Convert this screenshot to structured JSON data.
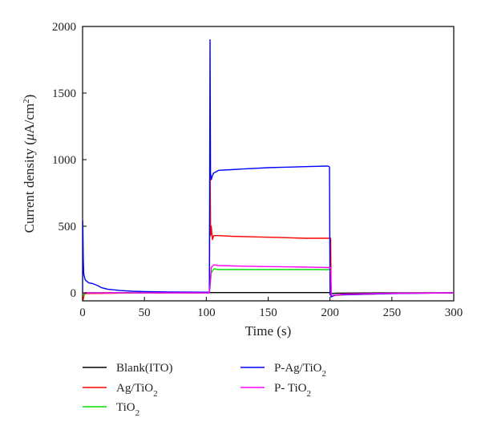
{
  "chart_data": {
    "type": "line",
    "title": "",
    "xlabel": "Time (s)",
    "ylabel_main": "Current density (",
    "ylabel_mu": "μ",
    "ylabel_unit": "A/cm",
    "ylabel_sup": "2",
    "ylabel_close": ")",
    "xlim": [
      0,
      300
    ],
    "ylim": [
      -60,
      2000
    ],
    "xticks": [
      0,
      50,
      100,
      150,
      200,
      250,
      300
    ],
    "yticks": [
      0,
      500,
      1000,
      1500,
      2000
    ],
    "grid": false,
    "legend_position": "bottom",
    "series": [
      {
        "name": "Blank(ITO)",
        "name_base": "Blank(ITO)",
        "name_sub": "",
        "color": "#000000",
        "x": [
          0,
          0.5,
          1.5,
          3,
          50,
          100,
          102,
          103,
          110,
          150,
          199,
          200,
          201,
          205,
          250,
          300
        ],
        "y": [
          0,
          -40,
          -10,
          0,
          0,
          0,
          0,
          2,
          2,
          2,
          2,
          0,
          -5,
          -2,
          0,
          0
        ]
      },
      {
        "name": "Ag/TiO2",
        "name_base": "Ag/TiO",
        "name_sub": "2",
        "color": "#ff0000",
        "x": [
          0,
          0.3,
          1,
          2,
          50,
          100,
          102.5,
          103,
          103.5,
          104,
          105,
          106,
          110,
          120,
          140,
          160,
          180,
          199,
          200.5,
          201,
          201.5,
          210,
          250,
          300
        ],
        "y": [
          0,
          -60,
          -20,
          -5,
          0,
          0,
          0,
          980,
          430,
          500,
          400,
          430,
          430,
          425,
          420,
          415,
          410,
          410,
          410,
          -30,
          -20,
          -15,
          -5,
          0
        ]
      },
      {
        "name": "TiO2",
        "name_base": "TiO",
        "name_sub": "2",
        "color": "#00e000",
        "x": [
          0,
          1,
          2,
          50,
          100,
          102.5,
          103,
          104,
          106,
          110,
          150,
          199,
          200,
          200.8,
          210,
          250,
          300
        ],
        "y": [
          0,
          -20,
          0,
          0,
          0,
          0,
          40,
          150,
          180,
          175,
          175,
          175,
          175,
          -20,
          -10,
          -3,
          0
        ]
      },
      {
        "name": "P-Ag/TiO2",
        "name_base": "P-Ag/TiO",
        "name_sub": "2",
        "color": "#0000ff",
        "x": [
          0,
          0.2,
          0.6,
          1,
          2,
          3,
          5,
          8,
          12,
          15,
          20,
          30,
          40,
          50,
          70,
          100,
          102.5,
          103,
          103.4,
          104,
          105,
          106,
          108,
          110,
          120,
          130,
          140,
          150,
          160,
          170,
          180,
          190,
          198,
          199,
          199.6,
          200,
          201,
          205,
          250,
          300
        ],
        "y": [
          0,
          540,
          250,
          140,
          100,
          90,
          75,
          70,
          55,
          40,
          28,
          18,
          12,
          10,
          7,
          5,
          5,
          1900,
          900,
          850,
          880,
          900,
          910,
          920,
          925,
          930,
          935,
          940,
          942,
          945,
          948,
          950,
          952,
          950,
          945,
          -10,
          -30,
          -15,
          -5,
          0
        ]
      },
      {
        "name": "P- TiO2",
        "name_base": "P- TiO",
        "name_sub": "2",
        "color": "#ff00ff",
        "x": [
          0,
          1,
          2,
          50,
          100,
          102.5,
          103,
          104,
          106,
          110,
          130,
          150,
          170,
          199,
          200.5,
          201,
          210,
          250,
          300
        ],
        "y": [
          0,
          -5,
          0,
          0,
          0,
          0,
          60,
          190,
          210,
          205,
          200,
          197,
          195,
          190,
          190,
          -20,
          -10,
          -3,
          0
        ]
      }
    ]
  }
}
